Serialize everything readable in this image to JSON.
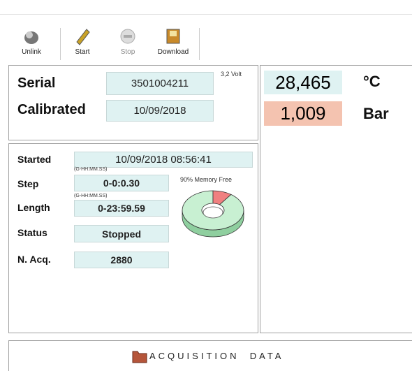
{
  "toolbar": {
    "buttons": [
      "Unlink",
      "Start",
      "Stop",
      "Download"
    ]
  },
  "device": {
    "serial_label": "Serial",
    "serial": "3501004211",
    "voltage": "3,2 Volt",
    "calibrated_label": "Calibrated",
    "calibrated": "10/09/2018"
  },
  "readings": {
    "temperature": "28,465",
    "temperature_unit": "°C",
    "pressure": "1,009",
    "pressure_unit": "Bar"
  },
  "acquisition": {
    "started_label": "Started",
    "started": "10/09/2018 08:56:41",
    "format_hint": "(G-HH:MM.SS)",
    "step_label": "Step",
    "step": "0-0:0.30",
    "length_label": "Length",
    "length": "0-23:59.59",
    "status_label": "Status",
    "status": "Stopped",
    "nacq_label": "N. Acq.",
    "nacq": "2880"
  },
  "memory": {
    "label": "90% Memory Free",
    "free": 90
  },
  "footer": {
    "title": "ACQUISITION  DATA"
  }
}
